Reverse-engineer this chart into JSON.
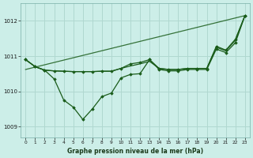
{
  "background_color": "#cceee8",
  "plot_bg_color": "#cceee8",
  "grid_color": "#b0d8d0",
  "line_color": "#1a5c1a",
  "xlabel": "Graphe pression niveau de la mer (hPa)",
  "ylim": [
    1008.7,
    1012.5
  ],
  "xlim": [
    -0.5,
    23.5
  ],
  "yticks": [
    1009,
    1010,
    1011,
    1012
  ],
  "xticks": [
    0,
    1,
    2,
    3,
    4,
    5,
    6,
    7,
    8,
    9,
    10,
    11,
    12,
    13,
    14,
    15,
    16,
    17,
    18,
    19,
    20,
    21,
    22,
    23
  ],
  "series_flat": [
    1010.9,
    1010.7,
    1010.6,
    1010.58,
    1010.57,
    1010.56,
    1010.56,
    1010.56,
    1010.57,
    1010.57,
    1010.65,
    1010.72,
    1010.78,
    1010.85,
    1010.65,
    1010.62,
    1010.62,
    1010.65,
    1010.65,
    1010.65,
    1011.25,
    1011.15,
    1011.45,
    1012.15
  ],
  "series_dip": [
    1010.9,
    1010.7,
    1010.6,
    1010.35,
    1009.75,
    1009.55,
    1009.2,
    1009.5,
    1009.85,
    1009.95,
    1010.38,
    1010.48,
    1010.5,
    1010.9,
    1010.62,
    1010.58,
    1010.58,
    1010.62,
    1010.62,
    1010.62,
    1011.2,
    1011.1,
    1011.38,
    1012.15
  ],
  "series_mid": [
    1010.9,
    1010.7,
    1010.6,
    1010.58,
    1010.57,
    1010.56,
    1010.56,
    1010.56,
    1010.57,
    1010.57,
    1010.65,
    1010.78,
    1010.82,
    1010.9,
    1010.65,
    1010.62,
    1010.62,
    1010.65,
    1010.65,
    1010.65,
    1011.28,
    1011.17,
    1011.48,
    1012.15
  ],
  "trend_x": [
    0,
    23
  ],
  "trend_y": [
    1010.62,
    1012.15
  ]
}
